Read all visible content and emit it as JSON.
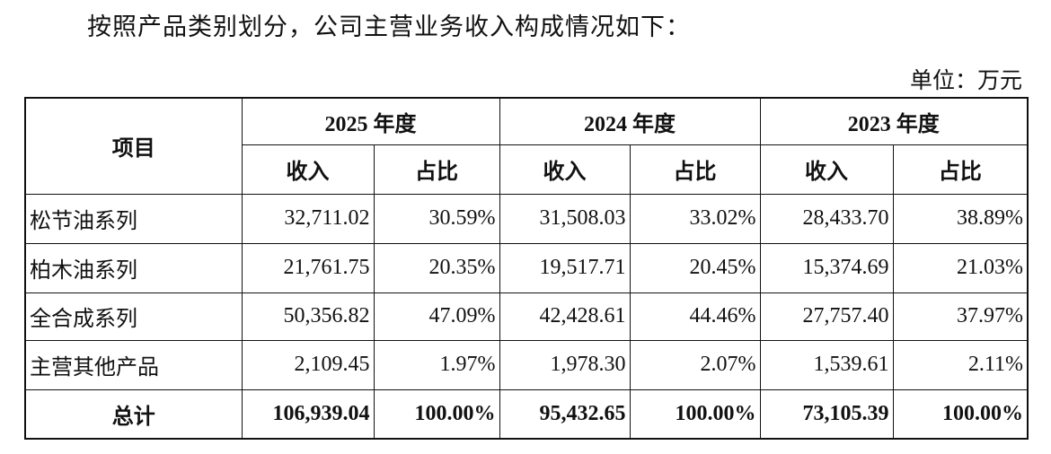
{
  "intro": "按照产品类别划分，公司主营业务收入构成情况如下：",
  "unit": "单位：万元",
  "table": {
    "item_header": "项目",
    "years": [
      "2025 年度",
      "2024 年度",
      "2023 年度"
    ],
    "sub_headers": [
      "收入",
      "占比",
      "收入",
      "占比",
      "收入",
      "占比"
    ],
    "rows": [
      [
        "松节油系列",
        "32,711.02",
        "30.59%",
        "31,508.03",
        "33.02%",
        "28,433.70",
        "38.89%"
      ],
      [
        "柏木油系列",
        "21,761.75",
        "20.35%",
        "19,517.71",
        "20.45%",
        "15,374.69",
        "21.03%"
      ],
      [
        "全合成系列",
        "50,356.82",
        "47.09%",
        "42,428.61",
        "44.46%",
        "27,757.40",
        "37.97%"
      ],
      [
        "主营其他产品",
        "2,109.45",
        "1.97%",
        "1,978.30",
        "2.07%",
        "1,539.61",
        "2.11%"
      ]
    ],
    "total": [
      "总计",
      "106,939.04",
      "100.00%",
      "95,432.65",
      "100.00%",
      "73,105.39",
      "100.00%"
    ]
  }
}
